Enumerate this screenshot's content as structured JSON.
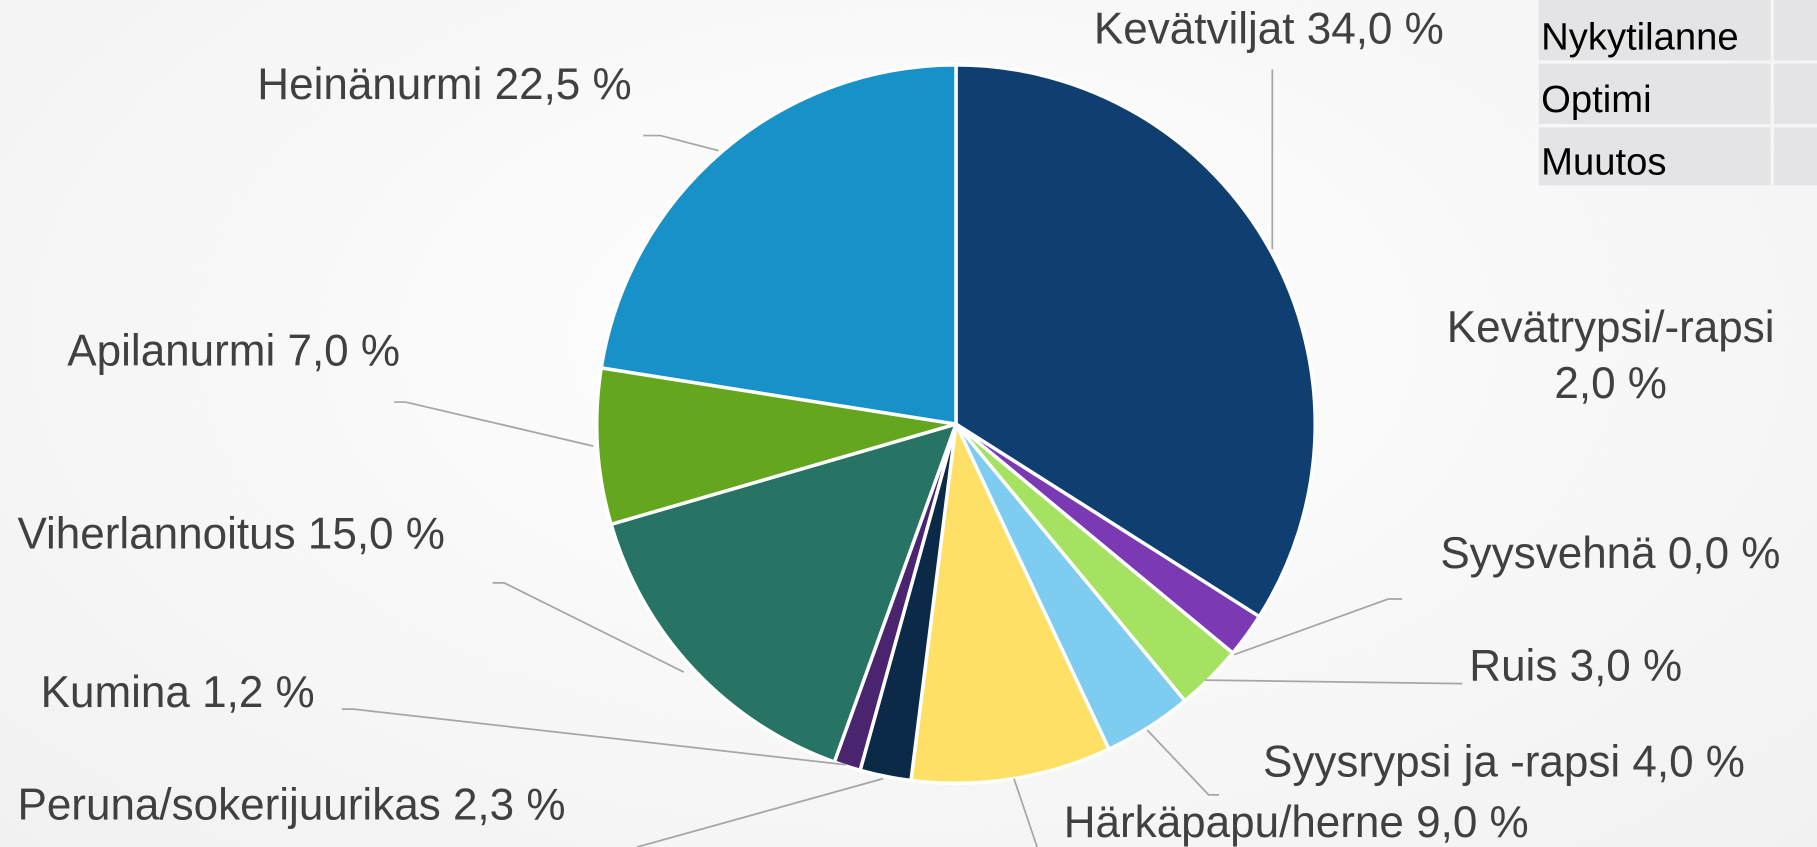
{
  "chart_data": {
    "type": "pie",
    "categories": [
      "Kevätviljat",
      "Kevätrypsi/-rapsi",
      "Syysvehnä",
      "Ruis",
      "Syysrypsi ja -rapsi",
      "Härkäpapu/herne",
      "Peruna/sokerijuurikas",
      "Kumina",
      "Viherlannoitus",
      "Apilanurmi",
      "Heinänurmi"
    ],
    "values": [
      34.0,
      2.0,
      0.0,
      3.0,
      4.0,
      9.0,
      2.3,
      1.2,
      15.0,
      7.0,
      22.5
    ],
    "value_labels": [
      "34,0 %",
      "2,0 %",
      "0,0 %",
      "3,0 %",
      "4,0 %",
      "9,0 %",
      "2,3 %",
      "1,2 %",
      "15,0 %",
      "7,0 %",
      "22,5 %"
    ],
    "colors": [
      "#0f3e70",
      "#7b3ab3",
      "#2f6fb0",
      "#a5e262",
      "#7ecdf0",
      "#ffe066",
      "#0a2a47",
      "#4b2470",
      "#277364",
      "#65a61f",
      "#1791c8"
    ]
  },
  "table": {
    "rows": [
      "Nykytilanne",
      "Optimi",
      "Muutos"
    ]
  }
}
